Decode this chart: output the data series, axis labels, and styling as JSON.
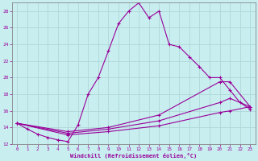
{
  "xlabel": "Windchill (Refroidissement éolien,°C)",
  "background_color": "#c8eef0",
  "grid_color": "#b0d8d8",
  "line_color": "#990099",
  "xlim": [
    -0.5,
    23.5
  ],
  "ylim": [
    12,
    29
  ],
  "yticks": [
    12,
    14,
    16,
    18,
    20,
    22,
    24,
    26,
    28
  ],
  "xticks": [
    0,
    1,
    2,
    3,
    4,
    5,
    6,
    7,
    8,
    9,
    10,
    11,
    12,
    13,
    14,
    15,
    16,
    17,
    18,
    19,
    20,
    21,
    22,
    23
  ],
  "series": [
    {
      "x": [
        0,
        1,
        2,
        3,
        4,
        5,
        6,
        7,
        8,
        9,
        10,
        11,
        12,
        13,
        14,
        15,
        16,
        17,
        18,
        19,
        20,
        21,
        22,
        23
      ],
      "y": [
        14.5,
        13.8,
        13.2,
        12.8,
        12.5,
        12.3,
        14.3,
        18.0,
        20.0,
        23.2,
        26.5,
        28.0,
        29.0,
        27.2,
        28.0,
        24.0,
        23.7,
        22.5,
        21.3,
        20.0,
        20.0,
        18.5,
        17.0,
        16.2
      ]
    },
    {
      "x": [
        0,
        5,
        9,
        14,
        20,
        21,
        23
      ],
      "y": [
        14.5,
        13.5,
        14.0,
        15.5,
        19.5,
        19.5,
        16.5
      ]
    },
    {
      "x": [
        0,
        5,
        9,
        14,
        20,
        21,
        23
      ],
      "y": [
        14.5,
        13.3,
        13.8,
        14.8,
        17.0,
        17.5,
        16.5
      ]
    },
    {
      "x": [
        0,
        5,
        9,
        14,
        20,
        21,
        23
      ],
      "y": [
        14.5,
        13.1,
        13.5,
        14.2,
        15.8,
        16.0,
        16.5
      ]
    }
  ]
}
